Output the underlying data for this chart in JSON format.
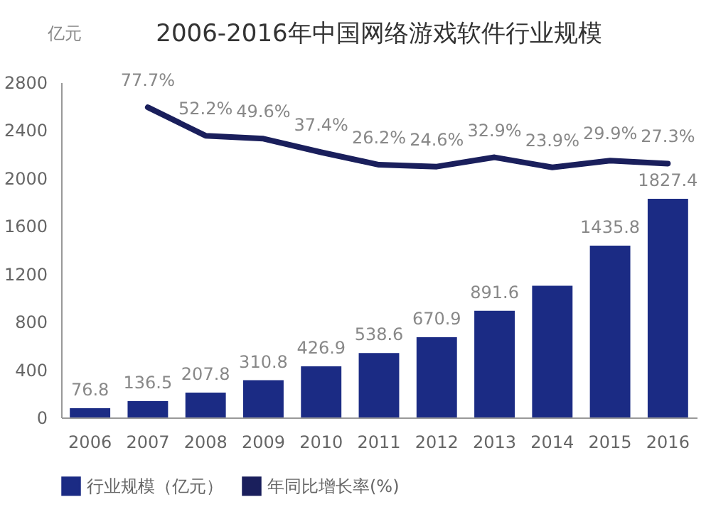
{
  "chart_data": {
    "type": "bar",
    "title": "2006-2016年中国网络游戏软件行业规模",
    "ylabel": "亿元",
    "categories": [
      "2006",
      "2007",
      "2008",
      "2009",
      "2010",
      "2011",
      "2012",
      "2013",
      "2014",
      "2015",
      "2016"
    ],
    "ylim": [
      0,
      2800
    ],
    "yticks": [
      0,
      400,
      800,
      1200,
      1600,
      2000,
      2400,
      2800
    ],
    "y2lim": [
      -200,
      100
    ],
    "legend": "bottom",
    "series": [
      {
        "name": "行业规模（亿元）",
        "color": "#1b2b84",
        "values": [
          76.8,
          136.5,
          207.8,
          310.8,
          426.9,
          538.6,
          670.9,
          891.6,
          1100,
          1435.8,
          1827.4
        ],
        "value_labels": [
          "76.8",
          "136.5",
          "207.8",
          "310.8",
          "426.9",
          "538.6",
          "670.9",
          "891.6",
          null,
          "1435.8",
          "1827.4"
        ]
      },
      {
        "name": "年同比增长率(%)",
        "type": "line",
        "axis": "y2",
        "color": "#1a1f5c",
        "values": [
          null,
          77.7,
          52.2,
          49.6,
          37.4,
          26.2,
          24.6,
          32.9,
          23.9,
          29.9,
          27.3
        ],
        "value_labels": [
          null,
          "77.7%",
          "52.2%",
          "49.6%",
          "37.4%",
          "26.2%",
          "24.6%",
          "32.9%",
          "23.9%",
          "29.9%",
          "27.3%"
        ]
      }
    ]
  }
}
